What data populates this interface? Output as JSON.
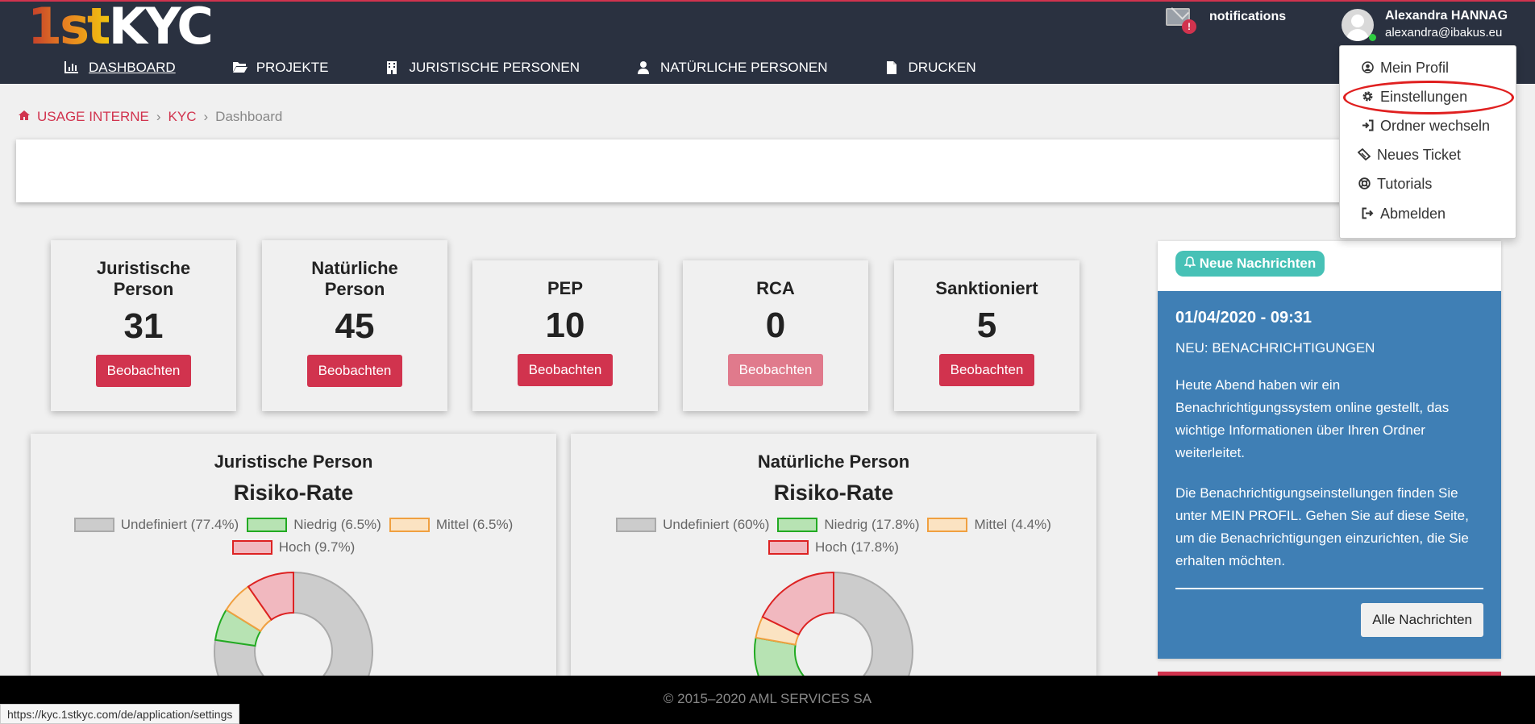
{
  "logo": {
    "part1": "1st",
    "part2": "KYC"
  },
  "header": {
    "notifications_label": "notifications",
    "user_name": "Alexandra HANNAG",
    "user_email": "alexandra@ibakus.eu"
  },
  "nav": [
    {
      "label": "DASHBOARD",
      "icon": "bar-chart-icon"
    },
    {
      "label": "PROJEKTE",
      "icon": "folder-open-icon"
    },
    {
      "label": "JURISTISCHE PERSONEN",
      "icon": "building-icon"
    },
    {
      "label": "NATÜRLICHE PERSONEN",
      "icon": "user-icon"
    },
    {
      "label": "DRUCKEN",
      "icon": "file-icon"
    }
  ],
  "breadcrumb": {
    "item1": "USAGE INTERNE",
    "item2": "KYC",
    "current": "Dashboard"
  },
  "cards": [
    {
      "title": "Juristische Person",
      "value": "31",
      "button": "Beobachten"
    },
    {
      "title": "Natürliche Person",
      "value": "45",
      "button": "Beobachten"
    },
    {
      "title": "PEP",
      "value": "10",
      "button": "Beobachten"
    },
    {
      "title": "RCA",
      "value": "0",
      "button": "Beobachten"
    },
    {
      "title": "Sanktioniert",
      "value": "5",
      "button": "Beobachten"
    }
  ],
  "charts": [
    {
      "title": "Juristische Person",
      "subtitle": "Risiko-Rate",
      "legend": [
        "Undefiniert (77.4%)",
        "Niedrig (6.5%)",
        "Mittel (6.5%)",
        "Hoch (9.7%)"
      ]
    },
    {
      "title": "Natürliche Person",
      "subtitle": "Risiko-Rate",
      "legend": [
        "Undefiniert (60%)",
        "Niedrig (17.8%)",
        "Mittel (4.4%)",
        "Hoch (17.8%)"
      ]
    }
  ],
  "chart_data": [
    {
      "type": "pie",
      "title": "Juristische Person",
      "subtitle": "Risiko-Rate",
      "categories": [
        "Undefiniert",
        "Niedrig",
        "Mittel",
        "Hoch"
      ],
      "values": [
        77.4,
        6.5,
        6.5,
        9.7
      ],
      "colors": [
        "#cccccc",
        "#b7e3b3",
        "#fbe3c2",
        "#f1b8bf"
      ],
      "border_colors": [
        "#aaaaaa",
        "#22aa22",
        "#f0a040",
        "#dd2222"
      ],
      "legend_position": "top"
    },
    {
      "type": "pie",
      "title": "Natürliche Person",
      "subtitle": "Risiko-Rate",
      "categories": [
        "Undefiniert",
        "Niedrig",
        "Mittel",
        "Hoch"
      ],
      "values": [
        60,
        17.8,
        4.4,
        17.8
      ],
      "colors": [
        "#cccccc",
        "#b7e3b3",
        "#fbe3c2",
        "#f1b8bf"
      ],
      "border_colors": [
        "#aaaaaa",
        "#22aa22",
        "#f0a040",
        "#dd2222"
      ],
      "legend_position": "top"
    }
  ],
  "news": {
    "badge": "Neue Nachrichten",
    "date": "01/04/2020 - 09:31",
    "headline": "NEU: BENACHRICHTIGUNGEN",
    "p1": "Heute Abend haben wir ein Benachrichtigungssystem online gestellt, das wichtige Informationen über Ihren Ordner weiterleitet.",
    "p2": "Die Benachrichtigungseinstellungen finden Sie unter MEIN PROFIL. Gehen Sie auf diese Seite, um die Benachrichtigungen einzurichten, die Sie erhalten möchten.",
    "button": "Alle Nachrichten"
  },
  "dropdown": [
    {
      "label": "Mein Profil",
      "icon": "user-circle-icon"
    },
    {
      "label": "Einstellungen",
      "icon": "gear-icon"
    },
    {
      "label": "Ordner wechseln",
      "icon": "sign-in-icon"
    },
    {
      "label": "Neues Ticket",
      "icon": "ticket-icon"
    },
    {
      "label": "Tutorials",
      "icon": "life-ring-icon"
    },
    {
      "label": "Abmelden",
      "icon": "sign-out-icon"
    }
  ],
  "footer": "© 2015–2020 AML SERVICES SA",
  "status_url": "https://kyc.1stkyc.com/de/application/settings",
  "colors": {
    "accent": "#d1334e",
    "topbar": "#2a3140",
    "news_blue": "#3f7fb5",
    "badge_teal": "#47c1b6"
  }
}
